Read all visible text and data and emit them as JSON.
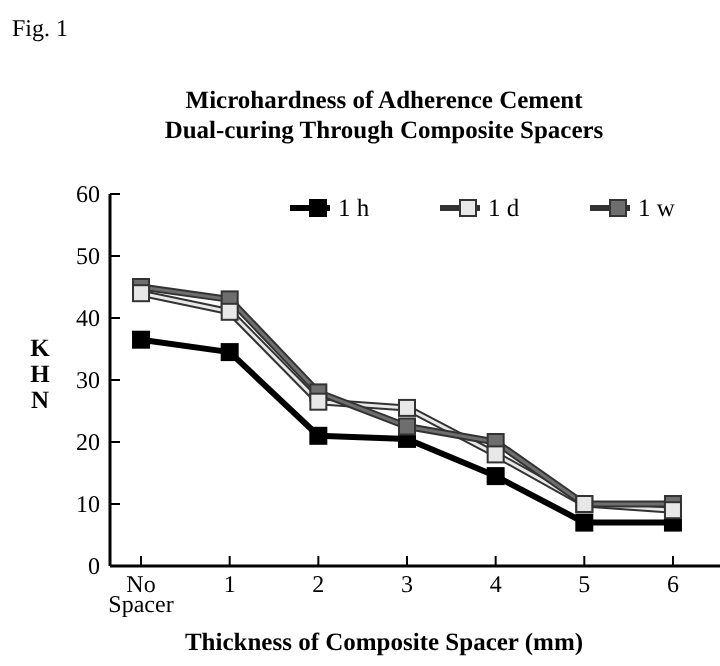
{
  "chart_data": {
    "type": "line",
    "title": "Microhardness of Adherence Cement\nDual-curing Through Composite Spacers",
    "xlabel": "Thickness of Composite Spacer (mm)",
    "ylabel": "KHN",
    "annotations": [
      "Fig. 1"
    ],
    "categories": [
      "No Spacer",
      "1",
      "2",
      "3",
      "4",
      "5",
      "6"
    ],
    "series": [
      {
        "name": "1 h",
        "color": "#000000",
        "values": [
          36.5,
          34.5,
          21,
          20.5,
          14.5,
          7,
          7
        ]
      },
      {
        "name": "1 d",
        "color": "#e8e8e8",
        "values": [
          44,
          41,
          26.5,
          25.5,
          18,
          10,
          9
        ]
      },
      {
        "name": "1 w",
        "color": "#6e6e6e",
        "values": [
          45,
          43,
          28,
          22.5,
          20,
          10,
          10
        ]
      }
    ],
    "ylim": [
      0,
      60
    ],
    "yticks": [
      0,
      10,
      20,
      30,
      40,
      50,
      60
    ],
    "marker": "square",
    "legend": "top",
    "grid": false
  }
}
